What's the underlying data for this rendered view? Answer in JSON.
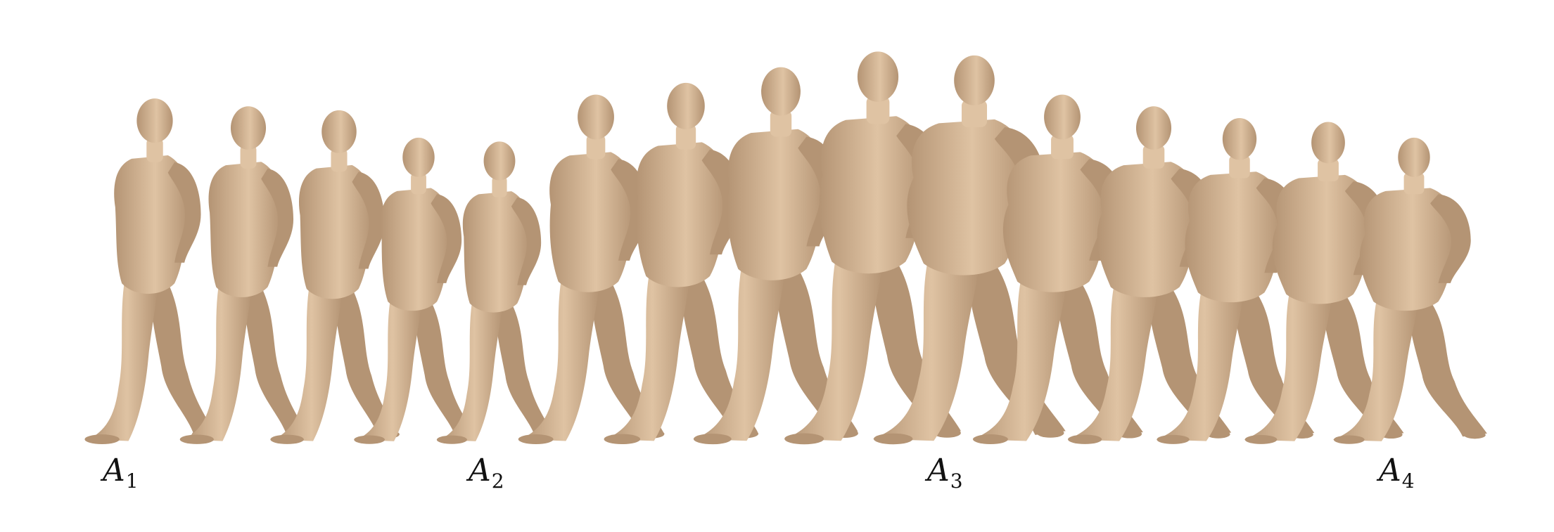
{
  "figure": {
    "skin_color": "#dfc3a3",
    "skin_shadow": "#b49474",
    "labels": [
      {
        "letter": "A",
        "index": "1"
      },
      {
        "letter": "A",
        "index": "2"
      },
      {
        "letter": "A",
        "index": "3"
      },
      {
        "letter": "A",
        "index": "4"
      }
    ],
    "bodies": [
      {
        "height": 0.88,
        "girth": 0.95
      },
      {
        "height": 0.86,
        "girth": 0.95
      },
      {
        "height": 0.85,
        "girth": 0.97
      },
      {
        "height": 0.78,
        "girth": 1.0
      },
      {
        "height": 0.77,
        "girth": 0.98
      },
      {
        "height": 0.89,
        "girth": 1.07
      },
      {
        "height": 0.92,
        "girth": 1.1
      },
      {
        "height": 0.96,
        "girth": 1.13
      },
      {
        "height": 1.0,
        "girth": 1.17
      },
      {
        "height": 0.99,
        "girth": 1.3
      },
      {
        "height": 0.89,
        "girth": 1.28
      },
      {
        "height": 0.86,
        "girth": 1.27
      },
      {
        "height": 0.83,
        "girth": 1.27
      },
      {
        "height": 0.82,
        "girth": 1.3
      },
      {
        "height": 0.78,
        "girth": 1.32
      }
    ]
  }
}
